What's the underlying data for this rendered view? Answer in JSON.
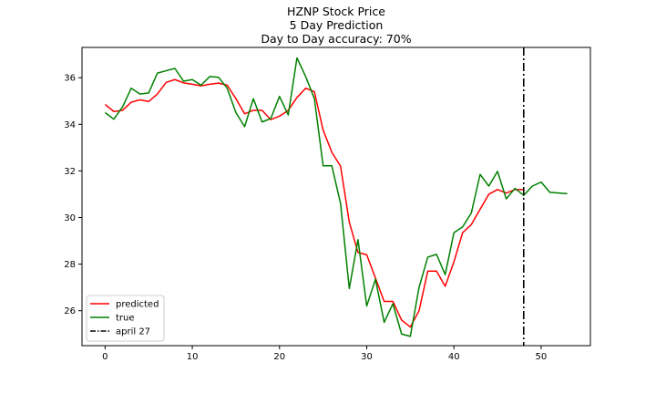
{
  "chart_data": {
    "type": "line",
    "title_lines": [
      "HZNP Stock Price",
      "5 Day Prediction",
      "Day to Day accuracy: 70%"
    ],
    "xlabel": "",
    "ylabel": "",
    "xlim": [
      -2.65,
      55.65
    ],
    "ylim": [
      24.5,
      37.3
    ],
    "x_ticks": [
      0,
      10,
      20,
      30,
      40,
      50
    ],
    "y_ticks": [
      26,
      28,
      30,
      32,
      34,
      36
    ],
    "grid": false,
    "legend_position": "lower-left",
    "series": [
      {
        "name": "predicted",
        "color": "#ff0000",
        "style": "solid",
        "x": [
          0,
          1,
          2,
          3,
          4,
          5,
          6,
          7,
          8,
          9,
          10,
          11,
          12,
          13,
          14,
          15,
          16,
          17,
          18,
          19,
          20,
          21,
          22,
          23,
          24,
          25,
          26,
          27,
          28,
          29,
          30,
          31,
          32,
          33,
          34,
          35,
          36,
          37,
          38,
          39,
          40,
          41,
          42,
          43,
          44,
          45,
          46,
          47,
          48
        ],
        "values": [
          34.85,
          34.55,
          34.6,
          34.95,
          35.05,
          34.98,
          35.3,
          35.8,
          35.92,
          35.78,
          35.72,
          35.65,
          35.72,
          35.77,
          35.68,
          35.1,
          34.45,
          34.6,
          34.6,
          34.2,
          34.35,
          34.6,
          35.15,
          35.55,
          35.4,
          33.75,
          32.8,
          32.2,
          29.8,
          28.5,
          28.4,
          27.4,
          26.4,
          26.4,
          25.6,
          25.3,
          26.0,
          27.7,
          27.7,
          27.05,
          28.1,
          29.35,
          29.7,
          30.35,
          31.0,
          31.2,
          31.05,
          31.2,
          31.2
        ]
      },
      {
        "name": "true",
        "color": "#008000",
        "style": "solid",
        "x": [
          0,
          1,
          2,
          3,
          4,
          5,
          6,
          7,
          8,
          9,
          10,
          11,
          12,
          13,
          14,
          15,
          16,
          17,
          18,
          19,
          20,
          21,
          22,
          23,
          24,
          25,
          26,
          27,
          28,
          29,
          30,
          31,
          32,
          33,
          34,
          35,
          36,
          37,
          38,
          39,
          40,
          41,
          42,
          43,
          44,
          45,
          46,
          47,
          48,
          49,
          50,
          51,
          53
        ],
        "values": [
          34.5,
          34.22,
          34.75,
          35.55,
          35.3,
          35.35,
          36.2,
          36.3,
          36.4,
          35.85,
          35.92,
          35.68,
          36.05,
          36.02,
          35.55,
          34.5,
          33.9,
          35.1,
          34.1,
          34.25,
          35.2,
          34.4,
          36.85,
          36.05,
          35.1,
          32.22,
          32.22,
          30.6,
          26.95,
          29.05,
          26.2,
          27.35,
          25.5,
          26.3,
          25.0,
          24.9,
          27.0,
          28.3,
          28.42,
          27.55,
          29.35,
          29.6,
          30.2,
          31.85,
          31.35,
          31.98,
          30.8,
          31.25,
          30.95,
          31.35,
          31.52,
          31.08,
          31.02
        ]
      },
      {
        "name": "april 27",
        "color": "#000000",
        "style": "dashdot",
        "vertical_x": 48
      }
    ]
  }
}
